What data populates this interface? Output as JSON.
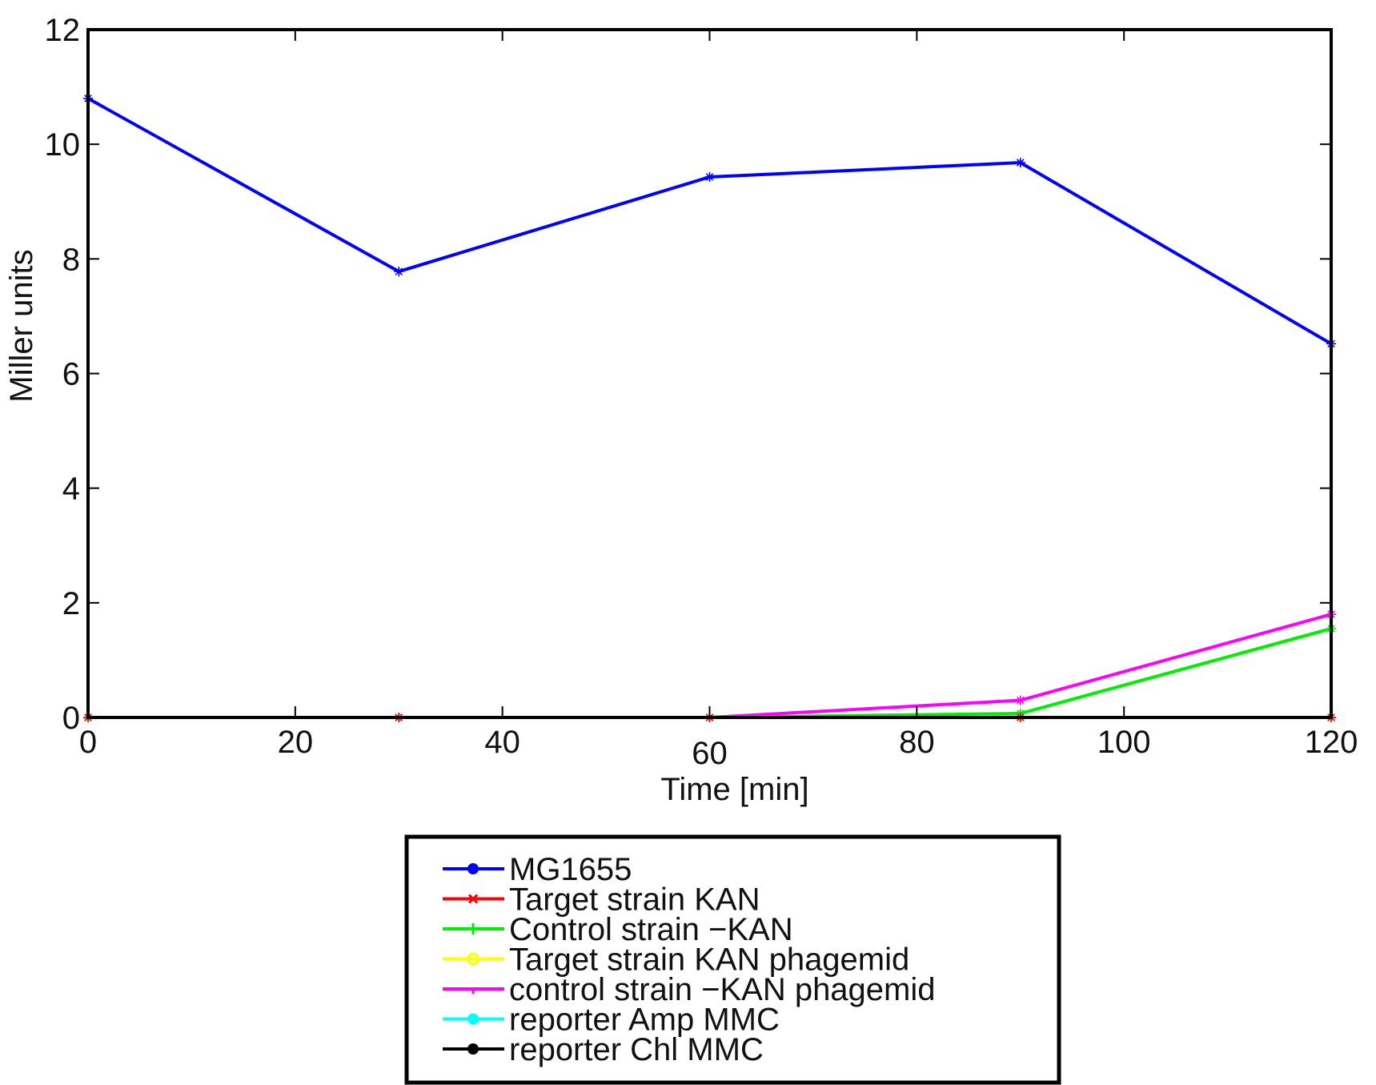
{
  "chart_data": {
    "type": "line",
    "title": "",
    "xlabel": "Time [min]",
    "ylabel": "Miller units",
    "xlim": [
      0,
      120
    ],
    "ylim": [
      0,
      12
    ],
    "xticks": [
      0,
      20,
      40,
      60,
      80,
      100,
      120
    ],
    "xtick_labels": [
      "0",
      "20",
      "40",
      "60",
      "80",
      "100",
      "120"
    ],
    "yticks": [
      0,
      2,
      4,
      6,
      8,
      10,
      12
    ],
    "ytick_labels": [
      "0",
      "2",
      "4",
      "6",
      "8",
      "10",
      "12"
    ],
    "grid": false,
    "legend_position": "below",
    "x": [
      0,
      30,
      60,
      90,
      120
    ],
    "series": [
      {
        "name": "MG1655",
        "color": "#0000ff",
        "marker": "asterisk",
        "legend_marker": "filled-circle",
        "values": [
          10.8,
          7.78,
          9.43,
          9.68,
          6.52
        ]
      },
      {
        "name": "Target strain KAN",
        "color": "#ff0000",
        "marker": "asterisk",
        "legend_marker": "x-mark",
        "values": [
          0.0,
          0.0,
          0.0,
          0.0,
          0.0
        ]
      },
      {
        "name": "Control strain −KAN",
        "color": "#00ee00",
        "marker": "asterisk",
        "legend_marker": "plus",
        "values": [
          0.0,
          0.0,
          0.0,
          0.07,
          1.55
        ]
      },
      {
        "name": "Target strain KAN phagemid",
        "color": "#ffff00",
        "marker": "asterisk",
        "legend_marker": "open-circle",
        "values": [
          0.0,
          0.0,
          0.0,
          0.0,
          0.0
        ]
      },
      {
        "name": "control strain −KAN phagemid",
        "color": "#ff00ff",
        "marker": "asterisk",
        "legend_marker": "point",
        "values": [
          0.0,
          0.0,
          0.0,
          0.3,
          1.8
        ]
      },
      {
        "name": "reporter Amp MMC",
        "color": "#00ffff",
        "marker": "asterisk",
        "legend_marker": "filled-circle",
        "values": [
          0.0,
          0.0,
          0.0,
          0.0,
          0.0
        ]
      },
      {
        "name": "reporter Chl MMC",
        "color": "#000000",
        "marker": "asterisk",
        "legend_marker": "filled-circle",
        "values": [
          0.0,
          0.0,
          0.0,
          0.0,
          0.0
        ]
      }
    ]
  }
}
